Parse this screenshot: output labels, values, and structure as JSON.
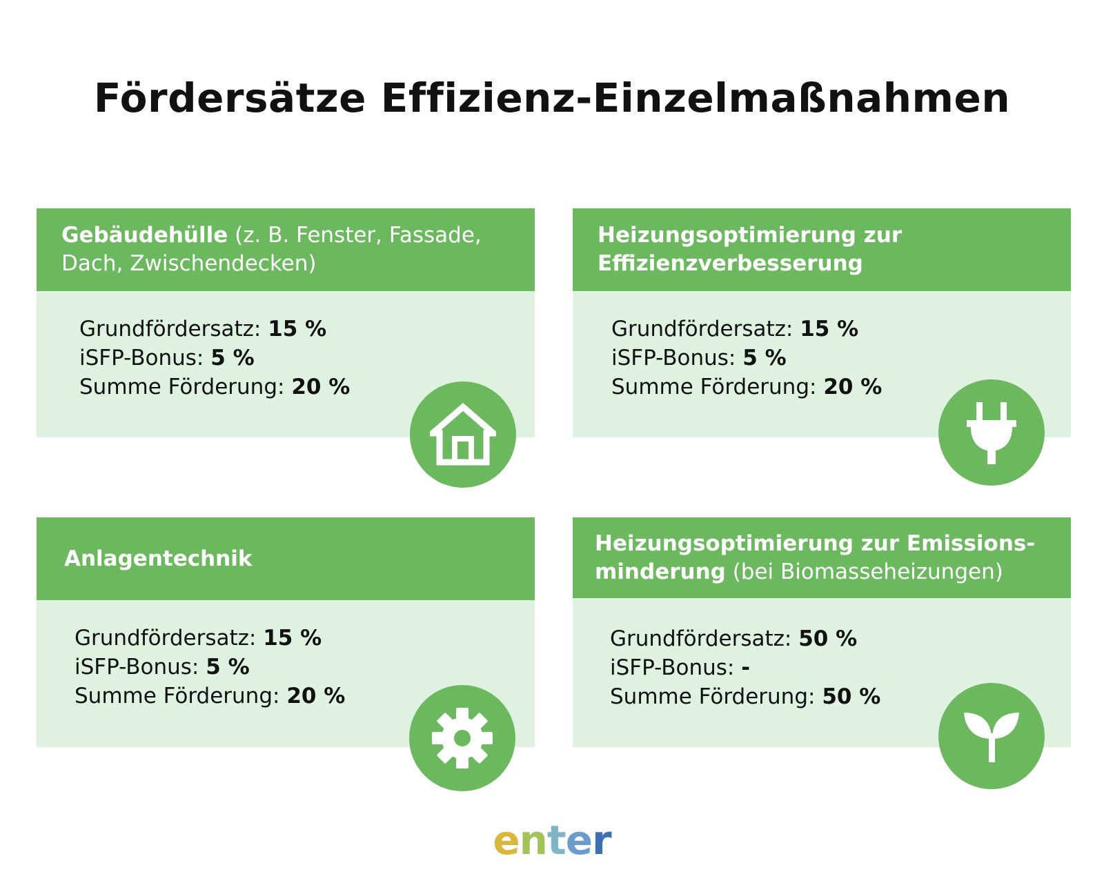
{
  "title": "Fördersätze Effizienz-Einzelmaßnahmen",
  "cards": [
    {
      "head_bold": "Gebäudehülle",
      "head_regular": " (z. B. Fenster, Fassade, Dach, Zwischendecken)",
      "rows": [
        {
          "label": "Grundfördersatz: ",
          "value": "15 %"
        },
        {
          "label": "iSFP-Bonus: ",
          "value": "5 %"
        },
        {
          "label": "Summe Förderung: ",
          "value": "20 %"
        }
      ],
      "icon": "house-icon"
    },
    {
      "head_bold": "Heizungsoptimierung zur Effizienzverbesserung",
      "head_regular": "",
      "rows": [
        {
          "label": "Grundfördersatz: ",
          "value": "15 %"
        },
        {
          "label": "iSFP-Bonus: ",
          "value": "5 %"
        },
        {
          "label": "Summe Förderung: ",
          "value": "20 %"
        }
      ],
      "icon": "plug-icon"
    },
    {
      "head_bold": "Anlagentechnik",
      "head_regular": "",
      "rows": [
        {
          "label": "Grundfördersatz: ",
          "value": "15 %"
        },
        {
          "label": "iSFP-Bonus: ",
          "value": "5 %"
        },
        {
          "label": "Summe Förderung: ",
          "value": "20 %"
        }
      ],
      "icon": "gear-icon"
    },
    {
      "head_bold": "Heizungsoptimierung zur Emissions-minderung",
      "head_regular": " (bei Biomasseheizungen)",
      "rows": [
        {
          "label": "Grundfördersatz: ",
          "value": "50 %"
        },
        {
          "label": "iSFP-Bonus: ",
          "value": "-"
        },
        {
          "label": "Summe Förderung: ",
          "value": "50 %"
        }
      ],
      "icon": "sprout-icon"
    }
  ],
  "logo": {
    "c1": "e",
    "c2": "n",
    "c3": "t",
    "c4": "e",
    "c5": "r"
  },
  "colors": {
    "header_green": "#6cb85f",
    "body_green": "#dff1e1"
  }
}
